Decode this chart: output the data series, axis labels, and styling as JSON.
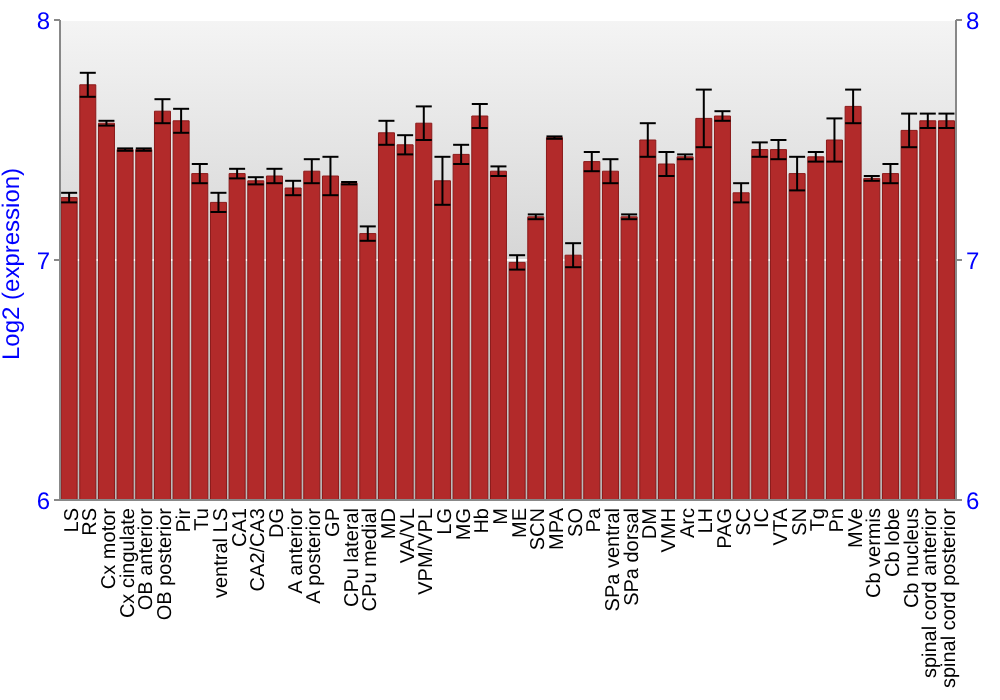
{
  "chart_data": {
    "type": "bar",
    "ylabel": "Log2 (expression)",
    "categories": [
      "LS",
      "RS",
      "Cx motor",
      "Cx cingulate",
      "OB anterior",
      "OB posterior",
      "Pir",
      "Tu",
      "ventral LS",
      "CA1",
      "CA2/CA3",
      "DG",
      "A anterior",
      "A posterior",
      "GP",
      "CPu lateral",
      "CPu medial",
      "MD",
      "VA/VL",
      "VPM/VPL",
      "LG",
      "MG",
      "Hb",
      "M",
      "ME",
      "SCN",
      "MPA",
      "SO",
      "Pa",
      "SPa ventral",
      "SPa dorsal",
      "DM",
      "VMH",
      "Arc",
      "LH",
      "PAG",
      "SC",
      "IC",
      "VTA",
      "SN",
      "Tg",
      "Pn",
      "MVe",
      "Cb vermis",
      "Cb lobe",
      "Cb nucleus",
      "spinal cord anterior",
      "spinal cord posterior"
    ],
    "values": [
      7.26,
      7.73,
      7.57,
      7.46,
      7.46,
      7.62,
      7.58,
      7.36,
      7.24,
      7.36,
      7.33,
      7.35,
      7.3,
      7.37,
      7.35,
      7.32,
      7.11,
      7.53,
      7.48,
      7.57,
      7.33,
      7.44,
      7.6,
      7.37,
      6.99,
      7.18,
      7.51,
      7.02,
      7.41,
      7.37,
      7.18,
      7.5,
      7.4,
      7.43,
      7.59,
      7.6,
      7.28,
      7.46,
      7.46,
      7.36,
      7.43,
      7.5,
      7.64,
      7.34,
      7.36,
      7.54,
      7.58,
      7.58
    ],
    "errors": [
      0.02,
      0.05,
      0.01,
      0.005,
      0.005,
      0.05,
      0.05,
      0.04,
      0.04,
      0.02,
      0.015,
      0.03,
      0.03,
      0.05,
      0.08,
      0.005,
      0.03,
      0.05,
      0.04,
      0.07,
      0.1,
      0.04,
      0.05,
      0.02,
      0.03,
      0.01,
      0.005,
      0.05,
      0.04,
      0.05,
      0.01,
      0.07,
      0.05,
      0.01,
      0.12,
      0.02,
      0.04,
      0.03,
      0.04,
      0.07,
      0.02,
      0.09,
      0.07,
      0.01,
      0.04,
      0.07,
      0.03,
      0.03
    ],
    "color": "#b22a2a",
    "ylim": [
      6,
      8
    ],
    "yticks": [
      6,
      7,
      8
    ],
    "y2lim": [
      6,
      8
    ],
    "y2ticks": [
      6,
      7,
      8
    ],
    "grid": "y"
  }
}
